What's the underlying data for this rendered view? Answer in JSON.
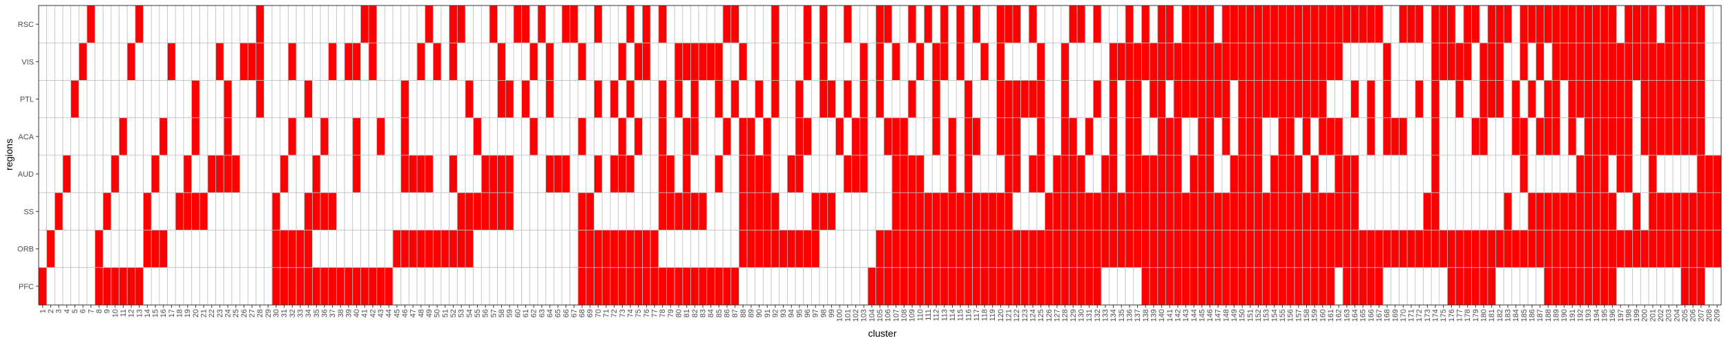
{
  "chart_data": {
    "type": "heatmap",
    "xlabel": "cluster",
    "ylabel": "regions",
    "rows": [
      "RSC",
      "VIS",
      "PTL",
      "ACA",
      "AUD",
      "SS",
      "ORB",
      "PFC"
    ],
    "cluster_count": 209,
    "fill_on": "#ff0000",
    "fill_off": "#ffffff",
    "grid": true,
    "grid_color": "#bebebe",
    "matrix": {
      "RSC": [
        0,
        0,
        0,
        0,
        0,
        0,
        1,
        0,
        0,
        0,
        0,
        0,
        1,
        0,
        0,
        0,
        0,
        0,
        0,
        0,
        0,
        0,
        0,
        0,
        0,
        0,
        0,
        1,
        0,
        0,
        0,
        0,
        0,
        0,
        0,
        0,
        0,
        0,
        0,
        0,
        1,
        1,
        0,
        0,
        0,
        0,
        0,
        0,
        1,
        0,
        0,
        1,
        1,
        0,
        0,
        0,
        1,
        0,
        0,
        1,
        1,
        0,
        1,
        0,
        0,
        1,
        1,
        0,
        0,
        1,
        0,
        0,
        0,
        1,
        0,
        1,
        0,
        1,
        0,
        0,
        0,
        0,
        0,
        0,
        0,
        1,
        1,
        0,
        0,
        0,
        0,
        1,
        0,
        0,
        0,
        1,
        0,
        1,
        0,
        0,
        1,
        0,
        0,
        0,
        1,
        1,
        0,
        0,
        1,
        0,
        1,
        0,
        1,
        0,
        1,
        0,
        1,
        0,
        0,
        1,
        1,
        1,
        0,
        1,
        0,
        0,
        0,
        0,
        1,
        1,
        0,
        1,
        0,
        0,
        0,
        1,
        0,
        1,
        0,
        1,
        1,
        0,
        1,
        1,
        1,
        1,
        0,
        1,
        1,
        1,
        1,
        1,
        1,
        1,
        1,
        1,
        1,
        1,
        1,
        1,
        1,
        1,
        1,
        1,
        1,
        1,
        1,
        0,
        0,
        1,
        1,
        1,
        0,
        1,
        1,
        1,
        0,
        1,
        1,
        0,
        1,
        1,
        1,
        0,
        1,
        1,
        1,
        1,
        1,
        1,
        1,
        1,
        1,
        1,
        1,
        1,
        0,
        1,
        1,
        1,
        1,
        0,
        1,
        1,
        1,
        1,
        1,
        0,
        0
      ],
      "VIS": [
        0,
        0,
        0,
        0,
        0,
        1,
        0,
        0,
        0,
        0,
        0,
        1,
        0,
        0,
        0,
        0,
        1,
        0,
        0,
        0,
        0,
        0,
        1,
        0,
        0,
        1,
        1,
        1,
        0,
        0,
        0,
        1,
        0,
        0,
        0,
        0,
        1,
        0,
        1,
        1,
        0,
        1,
        0,
        0,
        0,
        0,
        0,
        1,
        0,
        1,
        0,
        1,
        0,
        0,
        0,
        0,
        0,
        1,
        0,
        0,
        0,
        1,
        0,
        1,
        0,
        0,
        0,
        1,
        0,
        0,
        0,
        0,
        1,
        0,
        1,
        1,
        0,
        0,
        0,
        1,
        1,
        1,
        1,
        1,
        1,
        0,
        0,
        1,
        0,
        0,
        0,
        1,
        0,
        0,
        0,
        1,
        0,
        1,
        0,
        0,
        0,
        0,
        1,
        0,
        1,
        0,
        1,
        0,
        0,
        1,
        0,
        1,
        1,
        0,
        1,
        0,
        0,
        1,
        0,
        1,
        0,
        0,
        0,
        0,
        1,
        0,
        0,
        1,
        0,
        0,
        0,
        0,
        0,
        1,
        1,
        1,
        1,
        1,
        1,
        1,
        1,
        1,
        1,
        1,
        1,
        1,
        1,
        1,
        1,
        1,
        1,
        1,
        1,
        1,
        1,
        1,
        1,
        1,
        1,
        1,
        1,
        1,
        0,
        0,
        0,
        0,
        0,
        1,
        0,
        0,
        0,
        0,
        0,
        1,
        1,
        1,
        1,
        1,
        0,
        1,
        1,
        1,
        0,
        0,
        1,
        0,
        1,
        0,
        1,
        1,
        1,
        1,
        1,
        1,
        1,
        1,
        1,
        1,
        1,
        1,
        1,
        1,
        1,
        1,
        1,
        1,
        1,
        0,
        0
      ],
      "PTL": [
        0,
        0,
        0,
        0,
        1,
        0,
        0,
        0,
        0,
        0,
        0,
        0,
        0,
        0,
        0,
        0,
        0,
        0,
        0,
        1,
        0,
        0,
        0,
        1,
        0,
        0,
        0,
        1,
        0,
        0,
        0,
        0,
        0,
        1,
        0,
        0,
        0,
        0,
        0,
        0,
        0,
        0,
        0,
        0,
        0,
        1,
        0,
        0,
        0,
        0,
        0,
        0,
        0,
        1,
        0,
        0,
        0,
        1,
        1,
        0,
        1,
        0,
        0,
        1,
        0,
        0,
        0,
        0,
        0,
        1,
        0,
        1,
        0,
        1,
        0,
        0,
        0,
        1,
        0,
        1,
        0,
        1,
        0,
        0,
        1,
        0,
        1,
        0,
        0,
        1,
        0,
        1,
        0,
        0,
        1,
        0,
        0,
        1,
        1,
        0,
        1,
        0,
        1,
        0,
        1,
        0,
        0,
        0,
        1,
        0,
        0,
        1,
        0,
        0,
        0,
        1,
        0,
        0,
        0,
        1,
        1,
        1,
        1,
        1,
        1,
        0,
        0,
        1,
        0,
        0,
        0,
        1,
        0,
        1,
        0,
        1,
        1,
        0,
        1,
        1,
        0,
        1,
        1,
        1,
        1,
        1,
        1,
        1,
        0,
        1,
        1,
        1,
        1,
        1,
        1,
        1,
        1,
        1,
        1,
        1,
        0,
        0,
        0,
        1,
        0,
        1,
        0,
        1,
        0,
        0,
        0,
        1,
        0,
        1,
        0,
        0,
        1,
        0,
        0,
        1,
        1,
        1,
        0,
        1,
        0,
        1,
        0,
        1,
        1,
        0,
        1,
        1,
        1,
        1,
        1,
        1,
        1,
        1,
        0,
        1,
        1,
        1,
        1,
        1,
        1,
        1,
        1,
        0,
        0
      ],
      "ACA": [
        0,
        0,
        0,
        0,
        0,
        0,
        0,
        0,
        0,
        0,
        1,
        0,
        0,
        0,
        0,
        1,
        0,
        0,
        0,
        1,
        0,
        0,
        0,
        1,
        0,
        0,
        0,
        0,
        0,
        0,
        0,
        1,
        0,
        0,
        0,
        1,
        0,
        0,
        0,
        1,
        0,
        0,
        1,
        0,
        0,
        1,
        0,
        0,
        0,
        0,
        0,
        0,
        0,
        0,
        1,
        0,
        0,
        0,
        0,
        0,
        0,
        1,
        0,
        0,
        0,
        0,
        0,
        1,
        0,
        0,
        0,
        0,
        1,
        0,
        1,
        0,
        0,
        1,
        0,
        0,
        1,
        1,
        0,
        0,
        0,
        1,
        0,
        1,
        1,
        0,
        1,
        0,
        0,
        0,
        1,
        1,
        0,
        0,
        0,
        1,
        0,
        1,
        1,
        0,
        0,
        1,
        1,
        1,
        0,
        0,
        0,
        1,
        0,
        1,
        0,
        1,
        1,
        0,
        0,
        1,
        1,
        1,
        0,
        0,
        1,
        0,
        0,
        1,
        1,
        0,
        1,
        0,
        0,
        1,
        0,
        1,
        1,
        0,
        0,
        1,
        1,
        1,
        0,
        0,
        1,
        1,
        0,
        1,
        0,
        1,
        1,
        1,
        0,
        0,
        1,
        1,
        0,
        1,
        0,
        1,
        1,
        1,
        0,
        0,
        0,
        1,
        0,
        1,
        1,
        1,
        0,
        0,
        0,
        1,
        0,
        0,
        0,
        0,
        1,
        1,
        0,
        0,
        0,
        1,
        1,
        0,
        1,
        1,
        1,
        0,
        1,
        0,
        1,
        1,
        1,
        1,
        1,
        1,
        0,
        1,
        1,
        1,
        1,
        1,
        1,
        1,
        1,
        0,
        0
      ],
      "AUD": [
        0,
        0,
        0,
        1,
        0,
        0,
        0,
        0,
        0,
        1,
        0,
        0,
        0,
        0,
        1,
        0,
        0,
        0,
        1,
        0,
        0,
        1,
        1,
        1,
        1,
        0,
        0,
        0,
        0,
        0,
        1,
        0,
        0,
        0,
        1,
        0,
        0,
        0,
        0,
        1,
        0,
        0,
        0,
        0,
        0,
        1,
        1,
        1,
        1,
        0,
        0,
        1,
        0,
        0,
        0,
        1,
        1,
        1,
        1,
        0,
        0,
        0,
        0,
        1,
        1,
        1,
        0,
        0,
        0,
        1,
        0,
        1,
        1,
        1,
        0,
        0,
        0,
        1,
        1,
        0,
        1,
        0,
        0,
        0,
        1,
        0,
        0,
        1,
        1,
        1,
        1,
        0,
        0,
        1,
        1,
        0,
        0,
        0,
        0,
        0,
        1,
        1,
        1,
        0,
        0,
        0,
        1,
        1,
        1,
        1,
        0,
        0,
        0,
        1,
        0,
        1,
        0,
        0,
        0,
        0,
        1,
        1,
        0,
        1,
        1,
        0,
        1,
        1,
        1,
        1,
        0,
        0,
        1,
        1,
        0,
        1,
        1,
        1,
        1,
        1,
        1,
        1,
        0,
        1,
        1,
        1,
        0,
        0,
        1,
        1,
        1,
        1,
        0,
        1,
        1,
        1,
        1,
        0,
        1,
        0,
        0,
        1,
        1,
        1,
        0,
        0,
        0,
        0,
        0,
        0,
        0,
        0,
        0,
        1,
        0,
        0,
        0,
        0,
        0,
        0,
        0,
        0,
        0,
        0,
        1,
        0,
        0,
        0,
        0,
        0,
        0,
        1,
        1,
        1,
        1,
        0,
        1,
        1,
        0,
        0,
        1,
        0,
        0,
        0,
        0,
        0,
        1,
        1,
        1
      ],
      "SS": [
        0,
        0,
        1,
        0,
        0,
        0,
        0,
        0,
        1,
        0,
        0,
        0,
        0,
        1,
        0,
        0,
        0,
        1,
        1,
        1,
        1,
        0,
        0,
        0,
        0,
        0,
        0,
        0,
        0,
        1,
        0,
        0,
        0,
        1,
        1,
        1,
        1,
        0,
        0,
        0,
        0,
        0,
        0,
        0,
        0,
        0,
        0,
        0,
        0,
        0,
        0,
        0,
        1,
        1,
        1,
        1,
        1,
        1,
        1,
        0,
        0,
        0,
        0,
        0,
        0,
        0,
        0,
        1,
        1,
        0,
        0,
        0,
        0,
        0,
        0,
        0,
        0,
        1,
        1,
        1,
        1,
        1,
        1,
        0,
        0,
        0,
        0,
        1,
        1,
        1,
        1,
        1,
        0,
        0,
        0,
        0,
        1,
        1,
        1,
        0,
        0,
        0,
        0,
        0,
        0,
        0,
        1,
        1,
        1,
        1,
        1,
        1,
        1,
        1,
        1,
        1,
        1,
        1,
        1,
        1,
        1,
        0,
        0,
        0,
        0,
        1,
        1,
        1,
        1,
        1,
        1,
        1,
        1,
        1,
        1,
        1,
        1,
        1,
        1,
        1,
        1,
        1,
        1,
        1,
        1,
        1,
        1,
        1,
        1,
        1,
        1,
        1,
        1,
        1,
        1,
        1,
        1,
        1,
        1,
        1,
        1,
        1,
        1,
        1,
        0,
        0,
        0,
        0,
        0,
        0,
        0,
        0,
        1,
        1,
        0,
        0,
        0,
        0,
        0,
        0,
        0,
        0,
        1,
        0,
        0,
        1,
        1,
        1,
        1,
        1,
        1,
        1,
        1,
        1,
        1,
        1,
        0,
        0,
        1,
        0,
        1,
        1,
        1,
        1,
        1,
        1,
        1,
        1,
        1
      ],
      "ORB": [
        0,
        1,
        0,
        0,
        0,
        0,
        0,
        1,
        0,
        0,
        0,
        0,
        0,
        1,
        1,
        1,
        0,
        0,
        0,
        0,
        0,
        0,
        0,
        0,
        0,
        0,
        0,
        0,
        0,
        1,
        1,
        1,
        1,
        1,
        0,
        0,
        0,
        0,
        0,
        0,
        0,
        0,
        0,
        0,
        1,
        1,
        1,
        1,
        1,
        1,
        1,
        1,
        1,
        1,
        0,
        0,
        0,
        0,
        0,
        0,
        0,
        0,
        0,
        0,
        0,
        0,
        0,
        1,
        1,
        1,
        1,
        1,
        1,
        1,
        1,
        1,
        1,
        0,
        0,
        0,
        0,
        0,
        0,
        0,
        0,
        0,
        0,
        1,
        1,
        1,
        1,
        1,
        1,
        1,
        1,
        1,
        1,
        0,
        0,
        0,
        0,
        0,
        0,
        0,
        1,
        1,
        1,
        1,
        1,
        1,
        1,
        1,
        1,
        1,
        1,
        1,
        1,
        1,
        1,
        1,
        1,
        1,
        1,
        1,
        1,
        1,
        1,
        1,
        1,
        1,
        1,
        1,
        1,
        1,
        1,
        1,
        1,
        1,
        1,
        1,
        1,
        1,
        1,
        1,
        1,
        1,
        1,
        1,
        1,
        1,
        1,
        1,
        1,
        1,
        1,
        1,
        1,
        1,
        1,
        1,
        1,
        1,
        1,
        1,
        1,
        1,
        1,
        1,
        1,
        1,
        1,
        1,
        1,
        1,
        1,
        1,
        1,
        1,
        1,
        1,
        1,
        1,
        1,
        1,
        1,
        1,
        1,
        1,
        1,
        1,
        1,
        1,
        1,
        1,
        1,
        1,
        1,
        1,
        1,
        1,
        1,
        1,
        1,
        1,
        1,
        1,
        1,
        1,
        1
      ],
      "PFC": [
        1,
        0,
        0,
        0,
        0,
        0,
        0,
        1,
        1,
        1,
        1,
        1,
        1,
        0,
        0,
        0,
        0,
        0,
        0,
        0,
        0,
        0,
        0,
        0,
        0,
        0,
        0,
        0,
        0,
        1,
        1,
        1,
        1,
        1,
        1,
        1,
        1,
        1,
        1,
        1,
        1,
        1,
        1,
        1,
        0,
        0,
        0,
        0,
        0,
        0,
        0,
        0,
        0,
        0,
        0,
        0,
        0,
        0,
        0,
        0,
        0,
        0,
        0,
        0,
        0,
        0,
        0,
        1,
        1,
        1,
        1,
        1,
        1,
        1,
        1,
        1,
        1,
        1,
        1,
        1,
        1,
        1,
        1,
        1,
        1,
        1,
        1,
        0,
        0,
        0,
        0,
        0,
        0,
        0,
        0,
        0,
        0,
        0,
        0,
        0,
        0,
        0,
        0,
        1,
        1,
        1,
        1,
        1,
        1,
        1,
        1,
        1,
        1,
        1,
        1,
        1,
        1,
        1,
        1,
        1,
        1,
        1,
        1,
        1,
        1,
        1,
        1,
        1,
        1,
        1,
        1,
        1,
        0,
        0,
        0,
        0,
        0,
        1,
        1,
        1,
        1,
        1,
        1,
        1,
        1,
        1,
        1,
        1,
        1,
        1,
        1,
        1,
        1,
        1,
        1,
        1,
        1,
        1,
        1,
        1,
        1,
        0,
        1,
        1,
        1,
        1,
        1,
        0,
        0,
        0,
        0,
        0,
        0,
        0,
        0,
        1,
        1,
        1,
        1,
        1,
        1,
        0,
        0,
        0,
        0,
        0,
        0,
        1,
        1,
        1,
        1,
        1,
        1,
        1,
        1,
        1,
        0,
        0,
        0,
        0,
        0,
        0,
        0,
        0,
        1,
        1,
        1,
        0,
        0,
        0,
        0
      ]
    }
  }
}
